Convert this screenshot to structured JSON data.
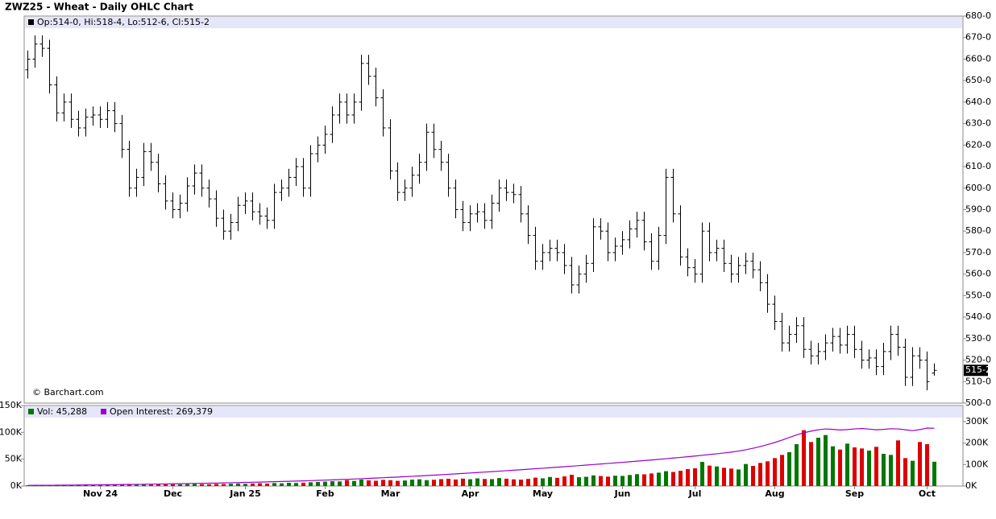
{
  "chart_data": [
    {
      "type": "ohlc",
      "title": "ZWZ25 - Wheat - Daily OHLC Chart",
      "info": "Op:514-0, Hi:518-4, Lo:512-6, Cl:515-2",
      "last_label": "515-2",
      "credit": "© Barchart.com",
      "color": "#000000",
      "categories": [
        null,
        null,
        null,
        null,
        null,
        null,
        null,
        null,
        null,
        null,
        "Nov 24",
        null,
        null,
        null,
        null,
        null,
        null,
        null,
        null,
        null,
        "Dec",
        null,
        null,
        null,
        null,
        null,
        null,
        null,
        null,
        null,
        "Jan 25",
        null,
        null,
        null,
        null,
        null,
        null,
        null,
        null,
        null,
        null,
        "Feb",
        null,
        null,
        null,
        null,
        null,
        null,
        null,
        null,
        "Mar",
        null,
        null,
        null,
        null,
        null,
        null,
        null,
        null,
        null,
        null,
        "Apr",
        null,
        null,
        null,
        null,
        null,
        null,
        null,
        null,
        null,
        "May",
        null,
        null,
        null,
        null,
        null,
        null,
        null,
        null,
        null,
        null,
        "Jun",
        null,
        null,
        null,
        null,
        null,
        null,
        null,
        null,
        null,
        "Jul",
        null,
        null,
        null,
        null,
        null,
        null,
        null,
        null,
        null,
        null,
        "Aug",
        null,
        null,
        null,
        null,
        null,
        null,
        null,
        null,
        null,
        null,
        "Sep",
        null,
        null,
        null,
        null,
        null,
        null,
        null,
        null,
        null,
        "Oct",
        null
      ],
      "open": [
        655,
        660,
        667,
        665,
        648,
        635,
        640,
        632,
        628,
        633,
        634,
        632,
        636,
        630,
        618,
        600,
        605,
        617,
        612,
        602,
        594,
        590,
        593,
        601,
        607,
        600,
        595,
        586,
        580,
        584,
        592,
        594,
        589,
        587,
        585,
        598,
        600,
        605,
        610,
        600,
        616,
        620,
        625,
        634,
        640,
        634,
        640,
        658,
        652,
        642,
        628,
        608,
        598,
        600,
        606,
        612,
        626,
        618,
        612,
        600,
        590,
        584,
        588,
        589,
        585,
        593,
        600,
        598,
        597,
        588,
        578,
        566,
        570,
        572,
        570,
        564,
        555,
        560,
        565,
        582,
        580,
        570,
        573,
        576,
        581,
        585,
        575,
        566,
        578,
        605,
        588,
        568,
        563,
        560,
        580,
        570,
        572,
        565,
        560,
        564,
        566,
        562,
        556,
        546,
        538,
        528,
        532,
        536,
        525,
        522,
        524,
        528,
        531,
        527,
        532,
        525,
        520,
        521,
        517,
        524,
        532,
        526,
        512,
        522,
        520,
        514
      ],
      "high": [
        664,
        671,
        671,
        669,
        652,
        644,
        644,
        636,
        637,
        638,
        638,
        640,
        640,
        634,
        622,
        609,
        621,
        621,
        616,
        606,
        598,
        597,
        605,
        611,
        611,
        604,
        599,
        590,
        588,
        596,
        598,
        598,
        593,
        591,
        602,
        604,
        609,
        614,
        614,
        620,
        624,
        629,
        638,
        644,
        644,
        644,
        662,
        662,
        656,
        646,
        632,
        612,
        604,
        610,
        616,
        630,
        630,
        622,
        616,
        604,
        594,
        592,
        593,
        593,
        597,
        604,
        604,
        602,
        601,
        592,
        582,
        574,
        576,
        576,
        574,
        568,
        564,
        569,
        586,
        586,
        584,
        577,
        580,
        585,
        589,
        589,
        579,
        582,
        609,
        609,
        592,
        572,
        567,
        584,
        584,
        576,
        576,
        569,
        568,
        570,
        570,
        566,
        560,
        550,
        542,
        536,
        540,
        540,
        529,
        528,
        532,
        535,
        535,
        536,
        536,
        529,
        525,
        525,
        528,
        536,
        536,
        530,
        526,
        526,
        524,
        518.5
      ],
      "low": [
        651,
        656,
        661,
        644,
        631,
        631,
        628,
        624,
        624,
        629,
        628,
        628,
        626,
        614,
        596,
        596,
        601,
        608,
        598,
        590,
        586,
        586,
        589,
        597,
        596,
        591,
        582,
        576,
        576,
        580,
        588,
        585,
        583,
        581,
        581,
        594,
        596,
        601,
        596,
        596,
        612,
        616,
        621,
        630,
        630,
        630,
        636,
        648,
        638,
        624,
        604,
        594,
        594,
        596,
        602,
        608,
        614,
        608,
        596,
        586,
        580,
        580,
        584,
        581,
        581,
        589,
        594,
        593,
        584,
        574,
        562,
        562,
        566,
        566,
        560,
        551,
        551,
        556,
        561,
        576,
        566,
        566,
        569,
        572,
        577,
        571,
        562,
        562,
        574,
        584,
        564,
        559,
        556,
        556,
        566,
        566,
        561,
        556,
        556,
        560,
        558,
        552,
        542,
        534,
        524,
        524,
        528,
        521,
        518,
        518,
        520,
        524,
        523,
        523,
        521,
        516,
        516,
        513,
        513,
        520,
        522,
        508,
        508,
        516,
        506,
        512.75
      ],
      "close": [
        660,
        667,
        665,
        648,
        635,
        640,
        632,
        628,
        633,
        634,
        632,
        636,
        630,
        618,
        600,
        605,
        617,
        612,
        602,
        594,
        590,
        593,
        601,
        607,
        600,
        595,
        586,
        580,
        584,
        592,
        594,
        589,
        587,
        585,
        598,
        600,
        605,
        610,
        600,
        616,
        620,
        625,
        634,
        640,
        634,
        640,
        658,
        652,
        642,
        628,
        608,
        598,
        600,
        606,
        612,
        626,
        618,
        612,
        600,
        590,
        584,
        588,
        589,
        585,
        593,
        600,
        598,
        597,
        588,
        578,
        566,
        570,
        572,
        570,
        564,
        555,
        560,
        565,
        582,
        580,
        570,
        573,
        576,
        581,
        585,
        575,
        566,
        578,
        605,
        588,
        568,
        563,
        560,
        580,
        570,
        572,
        565,
        560,
        564,
        566,
        562,
        556,
        546,
        538,
        528,
        532,
        536,
        525,
        522,
        524,
        528,
        531,
        527,
        532,
        525,
        520,
        521,
        517,
        524,
        532,
        526,
        512,
        522,
        520,
        510,
        515.25
      ],
      "ylim": [
        500,
        680
      ],
      "yticks": [
        {
          "value": 500,
          "label": "500-0"
        },
        {
          "value": 510,
          "label": "510-0"
        },
        {
          "value": 520,
          "label": "520-0"
        },
        {
          "value": 530,
          "label": "530-0"
        },
        {
          "value": 540,
          "label": "540-0"
        },
        {
          "value": 550,
          "label": "550-0"
        },
        {
          "value": 560,
          "label": "560-0"
        },
        {
          "value": 570,
          "label": "570-0"
        },
        {
          "value": 580,
          "label": "580-0"
        },
        {
          "value": 590,
          "label": "590-0"
        },
        {
          "value": 600,
          "label": "600-0"
        },
        {
          "value": 610,
          "label": "610-0"
        },
        {
          "value": 620,
          "label": "620-0"
        },
        {
          "value": 630,
          "label": "630-0"
        },
        {
          "value": 640,
          "label": "640-0"
        },
        {
          "value": 650,
          "label": "650-0"
        },
        {
          "value": 660,
          "label": "660-0"
        },
        {
          "value": 670,
          "label": "670-0"
        },
        {
          "value": 680,
          "label": "680-0"
        }
      ]
    },
    {
      "type": "volume",
      "down_color": "#dd0000",
      "series": [
        {
          "name": "Vol: 45,288",
          "color": "#007700",
          "values": [
            1200,
            1500,
            1800,
            1400,
            2000,
            1700,
            1600,
            2200,
            1900,
            2100,
            2300,
            2000,
            2500,
            2800,
            2400,
            2600,
            3000,
            2700,
            2900,
            3100,
            3300,
            3000,
            3500,
            3800,
            3400,
            3200,
            4000,
            3700,
            4200,
            4500,
            4100,
            4800,
            5200,
            4600,
            5500,
            5000,
            6000,
            5700,
            6200,
            7000,
            7500,
            8200,
            9000,
            8500,
            11000,
            9500,
            12000,
            10500,
            9800,
            11500,
            10800,
            9600,
            10200,
            11800,
            12500,
            10900,
            11600,
            12800,
            13500,
            12100,
            13800,
            12600,
            14200,
            13100,
            12900,
            14800,
            13600,
            12400,
            11900,
            13200,
            15600,
            14300,
            16800,
            15200,
            17900,
            21000,
            16400,
            17200,
            19800,
            18600,
            17500,
            19200,
            18800,
            20500,
            22100,
            21800,
            23400,
            24900,
            27600,
            26200,
            28400,
            31500,
            33000,
            45000,
            38000,
            36500,
            34000,
            32500,
            30800,
            41000,
            37500,
            43000,
            46000,
            52000,
            58000,
            63000,
            78000,
            104000,
            82000,
            90000,
            95000,
            74000,
            68000,
            79000,
            72000,
            70000,
            66000,
            73000,
            60000,
            58000,
            85000,
            52000,
            47000,
            82000,
            78000,
            45288
          ]
        },
        {
          "name": "Open Interest: 269,379",
          "color": "#9900cc",
          "axis": "y2",
          "values": [
            3000,
            3200,
            3400,
            3600,
            3900,
            4200,
            4500,
            4800,
            5100,
            5400,
            5800,
            6200,
            6600,
            7000,
            7400,
            7800,
            8200,
            8700,
            9200,
            9700,
            10200,
            10800,
            11400,
            12000,
            12600,
            13200,
            13900,
            14600,
            15300,
            16000,
            16800,
            17600,
            18400,
            19200,
            20100,
            21000,
            22000,
            23000,
            24000,
            25100,
            26200,
            27400,
            28600,
            29900,
            31200,
            32600,
            34000,
            35500,
            37000,
            38600,
            40200,
            41800,
            43500,
            45200,
            47000,
            48800,
            50700,
            52600,
            54600,
            56600,
            58600,
            60700,
            62800,
            64900,
            67000,
            69200,
            71400,
            73600,
            75900,
            78200,
            80500,
            82800,
            85200,
            87600,
            90000,
            92500,
            95000,
            97500,
            100000,
            102600,
            105200,
            107800,
            110400,
            113100,
            115800,
            118600,
            121400,
            124300,
            127200,
            130200,
            133300,
            136500,
            139800,
            143200,
            146700,
            150300,
            154000,
            158000,
            163000,
            169000,
            176000,
            184000,
            193000,
            203000,
            214000,
            226000,
            238000,
            248000,
            256000,
            262000,
            266000,
            264000,
            261000,
            263000,
            266000,
            268000,
            265000,
            262000,
            264000,
            267000,
            266000,
            262000,
            258000,
            263000,
            270000,
            269379
          ]
        }
      ],
      "ylim": [
        0,
        150000
      ],
      "yticks": [
        {
          "value": 0,
          "label": "0K"
        },
        {
          "value": 50000,
          "label": "50K"
        },
        {
          "value": 100000,
          "label": "100K"
        },
        {
          "value": 150000,
          "label": "150K"
        }
      ],
      "y2lim": [
        0,
        375000
      ],
      "y2ticks": [
        {
          "value": 0,
          "label": "0K"
        },
        {
          "value": 100000,
          "label": "100K"
        },
        {
          "value": 200000,
          "label": "200K"
        },
        {
          "value": 300000,
          "label": "300K"
        }
      ]
    }
  ]
}
